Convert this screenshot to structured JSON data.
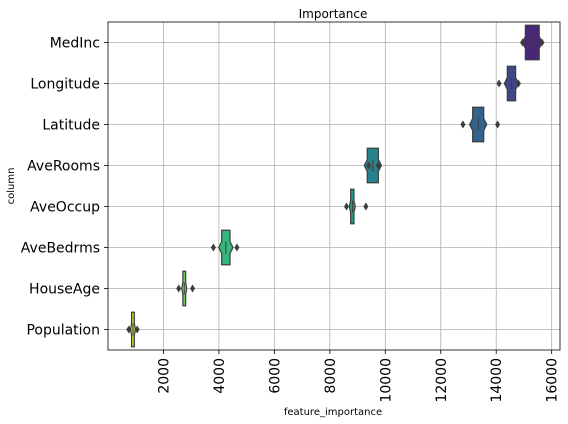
{
  "chart_data": {
    "type": "boxplot",
    "orientation": "horizontal",
    "title": "Importance",
    "xlabel": "feature_importance",
    "ylabel": "column",
    "xlim": [
      0,
      16300
    ],
    "xticks": [
      2000,
      4000,
      6000,
      8000,
      10000,
      12000,
      14000,
      16000
    ],
    "grid": true,
    "categories": [
      "MedInc",
      "Longitude",
      "Latitude",
      "AveRooms",
      "AveOccup",
      "AveBedrms",
      "HouseAge",
      "Population"
    ],
    "boxes": [
      {
        "name": "MedInc",
        "color": "#482777",
        "q1": 15050,
        "median": 15300,
        "q3": 15550,
        "whislo": 15050,
        "whishi": 15550,
        "fliers": [
          14950,
          15650
        ]
      },
      {
        "name": "Longitude",
        "color": "#404688",
        "q1": 14400,
        "median": 14550,
        "q3": 14700,
        "whislo": 14400,
        "whishi": 14700,
        "fliers": [
          14100,
          14800
        ]
      },
      {
        "name": "Latitude",
        "color": "#33638d",
        "q1": 13150,
        "median": 13350,
        "q3": 13550,
        "whislo": 13150,
        "whishi": 13550,
        "fliers": [
          12800,
          14050
        ]
      },
      {
        "name": "AveRooms",
        "color": "#26828e",
        "q1": 9350,
        "median": 9550,
        "q3": 9750,
        "whislo": 9350,
        "whishi": 9750,
        "fliers": [
          9400,
          9750
        ]
      },
      {
        "name": "AveOccup",
        "color": "#1f9e89",
        "q1": 8750,
        "median": 8820,
        "q3": 8870,
        "whislo": 8750,
        "whishi": 8870,
        "fliers": [
          8600,
          9300
        ]
      },
      {
        "name": "AveBedrms",
        "color": "#35b779",
        "q1": 4100,
        "median": 4250,
        "q3": 4400,
        "whislo": 4100,
        "whishi": 4400,
        "fliers": [
          3800,
          4650
        ]
      },
      {
        "name": "HouseAge",
        "color": "#6ece58",
        "q1": 2700,
        "median": 2750,
        "q3": 2800,
        "whislo": 2700,
        "whishi": 2800,
        "fliers": [
          2550,
          3050
        ]
      },
      {
        "name": "Population",
        "color": "#b5de2b",
        "q1": 850,
        "median": 900,
        "q3": 950,
        "whislo": 850,
        "whishi": 950,
        "fliers": [
          750,
          1050
        ]
      }
    ]
  }
}
